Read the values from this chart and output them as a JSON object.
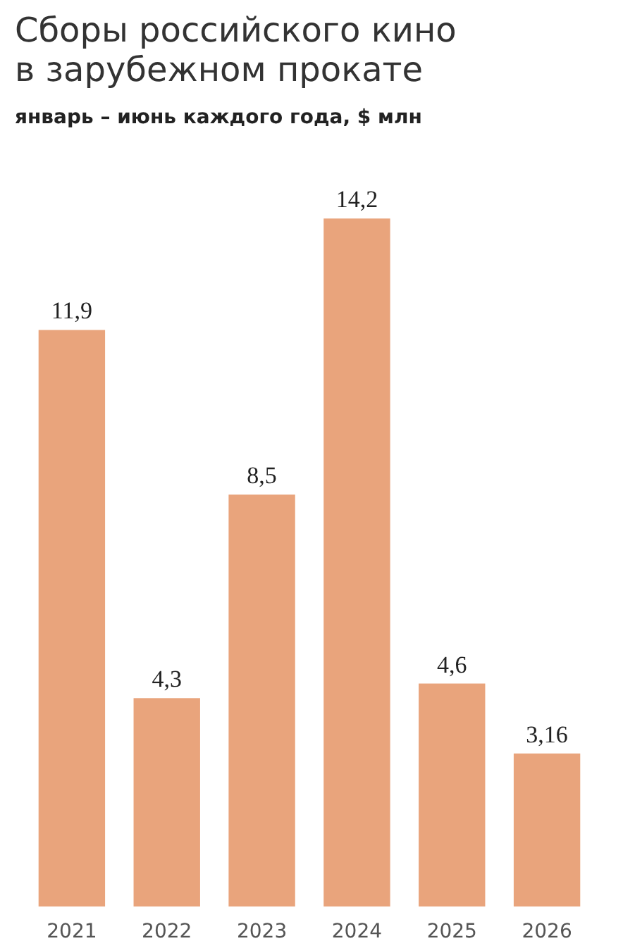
{
  "chart_data": {
    "type": "bar",
    "title": "Сборы российского кино\nв зарубежном прокате",
    "subtitle": "январь – июнь каждого года, $ млн",
    "categories": [
      "2021",
      "2022",
      "2023",
      "2024",
      "2025",
      "2026"
    ],
    "values": [
      11.9,
      4.3,
      8.5,
      14.2,
      4.6,
      3.16
    ],
    "value_labels": [
      "11,9",
      "4,3",
      "8,5",
      "14,2",
      "4,6",
      "3,16"
    ],
    "color": "#e9a47c"
  }
}
